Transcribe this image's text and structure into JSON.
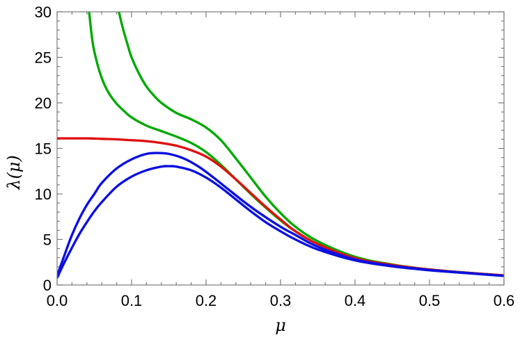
{
  "chart_data": {
    "type": "line",
    "title": "",
    "xlabel": "μ",
    "ylabel": "λ(μ)",
    "xlim": [
      0,
      0.6
    ],
    "ylim": [
      0,
      30
    ],
    "x_ticks": [
      "0.0",
      "0.1",
      "0.2",
      "0.3",
      "0.4",
      "0.5",
      "0.6"
    ],
    "y_ticks": [
      "0",
      "5",
      "10",
      "15",
      "20",
      "25",
      "30"
    ],
    "grid": false,
    "legend": "none",
    "series": [
      {
        "color": "#00aa00",
        "x": [
          0.043,
          0.048,
          0.055,
          0.062,
          0.07,
          0.08,
          0.09,
          0.1,
          0.12,
          0.14,
          0.16,
          0.18,
          0.2,
          0.22,
          0.24,
          0.26,
          0.28,
          0.3,
          0.32,
          0.35,
          0.4,
          0.45,
          0.5,
          0.55,
          0.6
        ],
        "y": [
          30,
          26.5,
          24.0,
          22.3,
          21.0,
          19.9,
          19.1,
          18.4,
          17.5,
          16.9,
          16.3,
          15.6,
          14.6,
          13.2,
          11.6,
          10.0,
          8.5,
          7.1,
          5.9,
          4.5,
          3.0,
          2.2,
          1.7,
          1.35,
          1.05
        ]
      },
      {
        "color": "#00aa00",
        "x": [
          0.083,
          0.088,
          0.095,
          0.1,
          0.11,
          0.12,
          0.13,
          0.14,
          0.16,
          0.18,
          0.2,
          0.22,
          0.24,
          0.26,
          0.28,
          0.3,
          0.32,
          0.35,
          0.4,
          0.45,
          0.5,
          0.55,
          0.6
        ],
        "y": [
          30,
          28.3,
          26.3,
          25.0,
          23.2,
          21.8,
          20.8,
          20.0,
          18.9,
          18.2,
          17.3,
          15.9,
          13.9,
          11.8,
          9.7,
          7.9,
          6.4,
          4.8,
          3.1,
          2.25,
          1.7,
          1.35,
          1.05
        ]
      },
      {
        "color": "#e01010",
        "x": [
          0.0,
          0.02,
          0.04,
          0.06,
          0.08,
          0.1,
          0.12,
          0.14,
          0.16,
          0.18,
          0.2,
          0.22,
          0.24,
          0.26,
          0.28,
          0.3,
          0.32,
          0.35,
          0.4,
          0.45,
          0.5,
          0.55,
          0.6
        ],
        "y": [
          16.1,
          16.1,
          16.1,
          16.05,
          16.0,
          15.9,
          15.8,
          15.6,
          15.3,
          14.8,
          14.1,
          13.0,
          11.6,
          10.1,
          8.6,
          7.2,
          5.9,
          4.5,
          2.95,
          2.2,
          1.7,
          1.35,
          1.05
        ]
      },
      {
        "color": "#0a10e0",
        "x": [
          0.0,
          0.01,
          0.02,
          0.03,
          0.04,
          0.05,
          0.06,
          0.08,
          0.1,
          0.12,
          0.135,
          0.15,
          0.17,
          0.19,
          0.21,
          0.23,
          0.25,
          0.27,
          0.3,
          0.32,
          0.35,
          0.4,
          0.45,
          0.5,
          0.55,
          0.6
        ],
        "y": [
          1.0,
          3.3,
          5.5,
          7.3,
          8.8,
          10.0,
          11.2,
          12.8,
          13.8,
          14.4,
          14.5,
          14.4,
          13.9,
          13.0,
          11.8,
          10.5,
          9.2,
          8.0,
          6.4,
          5.5,
          4.2,
          2.8,
          2.1,
          1.65,
          1.32,
          1.0
        ]
      },
      {
        "color": "#0a10e0",
        "x": [
          0.0,
          0.01,
          0.02,
          0.03,
          0.04,
          0.05,
          0.06,
          0.08,
          0.1,
          0.12,
          0.14,
          0.15,
          0.16,
          0.18,
          0.2,
          0.22,
          0.24,
          0.26,
          0.28,
          0.3,
          0.32,
          0.35,
          0.4,
          0.45,
          0.5,
          0.55,
          0.6
        ],
        "y": [
          0.8,
          2.5,
          4.1,
          5.6,
          6.9,
          8.1,
          9.1,
          10.8,
          11.9,
          12.6,
          13.0,
          13.05,
          13.0,
          12.6,
          11.8,
          10.7,
          9.4,
          8.1,
          6.9,
          5.9,
          5.0,
          3.9,
          2.7,
          2.05,
          1.62,
          1.3,
          1.0
        ]
      }
    ]
  }
}
